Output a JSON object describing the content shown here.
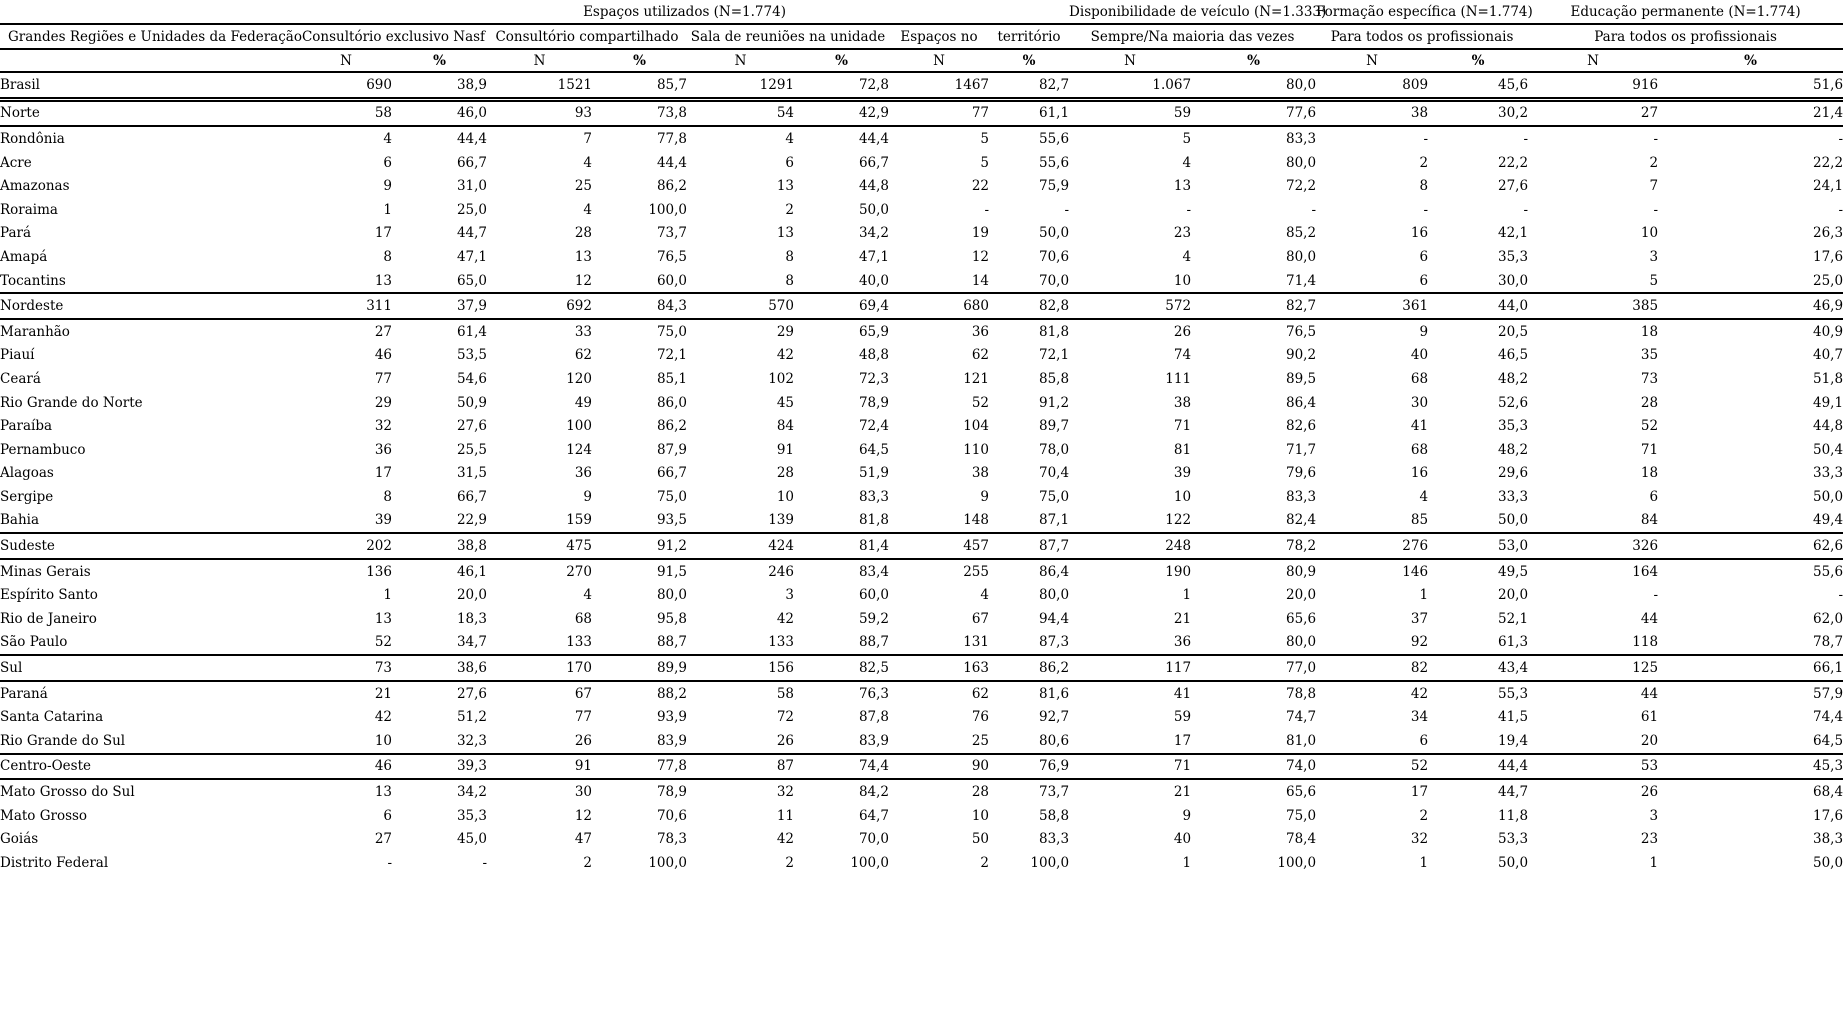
{
  "table": {
    "group_headers": [
      {
        "label": "",
        "span": 1
      },
      {
        "label": "Espaços utilizados (N=1.774)",
        "span": 8
      },
      {
        "label": "Disponibilidade de veículo (N=1.333)",
        "span": 2
      },
      {
        "label": "Formação específica (N=1.774)",
        "span": 2
      },
      {
        "label": "Educação permanente (N=1.774)",
        "span": 2
      }
    ],
    "column_headers": [
      {
        "label": "Grandes Regiões e Unidades da Federação",
        "span": 1
      },
      {
        "label": "Consultório exclusivo Nasf",
        "span": 2
      },
      {
        "label": "Consultório compartilhado",
        "span": 2
      },
      {
        "label": "Sala de reuniões na unidade",
        "span": 2
      },
      {
        "label": "Espaços no",
        "span": 1
      },
      {
        "label": "território",
        "span": 1
      },
      {
        "label": "Sempre/Na maioria das vezes",
        "span": 2
      },
      {
        "label": "Para todos os profissionais",
        "span": 2
      },
      {
        "label": "Para todos os profissionais",
        "span": 2
      }
    ],
    "subheaders": {
      "n_label": "N",
      "pct_label": "%",
      "pairs": 7
    },
    "rows": [
      {
        "name": "Brasil",
        "type": "brasil",
        "values": [
          "690",
          "38,9",
          "1521",
          "85,7",
          "1291",
          "72,8",
          "1467",
          "82,7",
          "1.067",
          "80,0",
          "809",
          "45,6",
          "916",
          "51,6"
        ]
      },
      {
        "name": "Norte",
        "type": "region",
        "values": [
          "58",
          "46,0",
          "93",
          "73,8",
          "54",
          "42,9",
          "77",
          "61,1",
          "59",
          "77,6",
          "38",
          "30,2",
          "27",
          "21,4"
        ]
      },
      {
        "name": "Rondônia",
        "type": "state",
        "values": [
          "4",
          "44,4",
          "7",
          "77,8",
          "4",
          "44,4",
          "5",
          "55,6",
          "5",
          "83,3",
          "-",
          "-",
          "-",
          "-"
        ]
      },
      {
        "name": "Acre",
        "type": "state",
        "values": [
          "6",
          "66,7",
          "4",
          "44,4",
          "6",
          "66,7",
          "5",
          "55,6",
          "4",
          "80,0",
          "2",
          "22,2",
          "2",
          "22,2"
        ]
      },
      {
        "name": "Amazonas",
        "type": "state",
        "values": [
          "9",
          "31,0",
          "25",
          "86,2",
          "13",
          "44,8",
          "22",
          "75,9",
          "13",
          "72,2",
          "8",
          "27,6",
          "7",
          "24,1"
        ]
      },
      {
        "name": "Roraima",
        "type": "state",
        "values": [
          "1",
          "25,0",
          "4",
          "100,0",
          "2",
          "50,0",
          "-",
          "-",
          "-",
          "-",
          "-",
          "-",
          "-",
          "-"
        ]
      },
      {
        "name": "Pará",
        "type": "state",
        "values": [
          "17",
          "44,7",
          "28",
          "73,7",
          "13",
          "34,2",
          "19",
          "50,0",
          "23",
          "85,2",
          "16",
          "42,1",
          "10",
          "26,3"
        ]
      },
      {
        "name": "Amapá",
        "type": "state",
        "values": [
          "8",
          "47,1",
          "13",
          "76,5",
          "8",
          "47,1",
          "12",
          "70,6",
          "4",
          "80,0",
          "6",
          "35,3",
          "3",
          "17,6"
        ]
      },
      {
        "name": "Tocantins",
        "type": "state",
        "values": [
          "13",
          "65,0",
          "12",
          "60,0",
          "8",
          "40,0",
          "14",
          "70,0",
          "10",
          "71,4",
          "6",
          "30,0",
          "5",
          "25,0"
        ]
      },
      {
        "name": "Nordeste",
        "type": "region",
        "values": [
          "311",
          "37,9",
          "692",
          "84,3",
          "570",
          "69,4",
          "680",
          "82,8",
          "572",
          "82,7",
          "361",
          "44,0",
          "385",
          "46,9"
        ]
      },
      {
        "name": "Maranhão",
        "type": "state",
        "values": [
          "27",
          "61,4",
          "33",
          "75,0",
          "29",
          "65,9",
          "36",
          "81,8",
          "26",
          "76,5",
          "9",
          "20,5",
          "18",
          "40,9"
        ]
      },
      {
        "name": "Piauí",
        "type": "state",
        "values": [
          "46",
          "53,5",
          "62",
          "72,1",
          "42",
          "48,8",
          "62",
          "72,1",
          "74",
          "90,2",
          "40",
          "46,5",
          "35",
          "40,7"
        ]
      },
      {
        "name": "Ceará",
        "type": "state",
        "values": [
          "77",
          "54,6",
          "120",
          "85,1",
          "102",
          "72,3",
          "121",
          "85,8",
          "111",
          "89,5",
          "68",
          "48,2",
          "73",
          "51,8"
        ]
      },
      {
        "name": "Rio Grande do Norte",
        "type": "state",
        "values": [
          "29",
          "50,9",
          "49",
          "86,0",
          "45",
          "78,9",
          "52",
          "91,2",
          "38",
          "86,4",
          "30",
          "52,6",
          "28",
          "49,1"
        ]
      },
      {
        "name": "Paraíba",
        "type": "state",
        "values": [
          "32",
          "27,6",
          "100",
          "86,2",
          "84",
          "72,4",
          "104",
          "89,7",
          "71",
          "82,6",
          "41",
          "35,3",
          "52",
          "44,8"
        ]
      },
      {
        "name": "Pernambuco",
        "type": "state",
        "values": [
          "36",
          "25,5",
          "124",
          "87,9",
          "91",
          "64,5",
          "110",
          "78,0",
          "81",
          "71,7",
          "68",
          "48,2",
          "71",
          "50,4"
        ]
      },
      {
        "name": "Alagoas",
        "type": "state",
        "values": [
          "17",
          "31,5",
          "36",
          "66,7",
          "28",
          "51,9",
          "38",
          "70,4",
          "39",
          "79,6",
          "16",
          "29,6",
          "18",
          "33,3"
        ]
      },
      {
        "name": "Sergipe",
        "type": "state",
        "values": [
          "8",
          "66,7",
          "9",
          "75,0",
          "10",
          "83,3",
          "9",
          "75,0",
          "10",
          "83,3",
          "4",
          "33,3",
          "6",
          "50,0"
        ]
      },
      {
        "name": "Bahia",
        "type": "state",
        "values": [
          "39",
          "22,9",
          "159",
          "93,5",
          "139",
          "81,8",
          "148",
          "87,1",
          "122",
          "82,4",
          "85",
          "50,0",
          "84",
          "49,4"
        ]
      },
      {
        "name": "Sudeste",
        "type": "region",
        "values": [
          "202",
          "38,8",
          "475",
          "91,2",
          "424",
          "81,4",
          "457",
          "87,7",
          "248",
          "78,2",
          "276",
          "53,0",
          "326",
          "62,6"
        ]
      },
      {
        "name": "Minas Gerais",
        "type": "state",
        "values": [
          "136",
          "46,1",
          "270",
          "91,5",
          "246",
          "83,4",
          "255",
          "86,4",
          "190",
          "80,9",
          "146",
          "49,5",
          "164",
          "55,6"
        ]
      },
      {
        "name": "Espírito Santo",
        "type": "state",
        "values": [
          "1",
          "20,0",
          "4",
          "80,0",
          "3",
          "60,0",
          "4",
          "80,0",
          "1",
          "20,0",
          "1",
          "20,0",
          "-",
          "-"
        ]
      },
      {
        "name": "Rio de Janeiro",
        "type": "state",
        "values": [
          "13",
          "18,3",
          "68",
          "95,8",
          "42",
          "59,2",
          "67",
          "94,4",
          "21",
          "65,6",
          "37",
          "52,1",
          "44",
          "62,0"
        ]
      },
      {
        "name": "São Paulo",
        "type": "state",
        "values": [
          "52",
          "34,7",
          "133",
          "88,7",
          "133",
          "88,7",
          "131",
          "87,3",
          "36",
          "80,0",
          "92",
          "61,3",
          "118",
          "78,7"
        ]
      },
      {
        "name": "Sul",
        "type": "region",
        "values": [
          "73",
          "38,6",
          "170",
          "89,9",
          "156",
          "82,5",
          "163",
          "86,2",
          "117",
          "77,0",
          "82",
          "43,4",
          "125",
          "66,1"
        ]
      },
      {
        "name": "Paraná",
        "type": "state",
        "values": [
          "21",
          "27,6",
          "67",
          "88,2",
          "58",
          "76,3",
          "62",
          "81,6",
          "41",
          "78,8",
          "42",
          "55,3",
          "44",
          "57,9"
        ]
      },
      {
        "name": "Santa Catarina",
        "type": "state",
        "values": [
          "42",
          "51,2",
          "77",
          "93,9",
          "72",
          "87,8",
          "76",
          "92,7",
          "59",
          "74,7",
          "34",
          "41,5",
          "61",
          "74,4"
        ]
      },
      {
        "name": "Rio Grande do Sul",
        "type": "state",
        "values": [
          "10",
          "32,3",
          "26",
          "83,9",
          "26",
          "83,9",
          "25",
          "80,6",
          "17",
          "81,0",
          "6",
          "19,4",
          "20",
          "64,5"
        ]
      },
      {
        "name": "Centro-Oeste",
        "type": "region",
        "values": [
          "46",
          "39,3",
          "91",
          "77,8",
          "87",
          "74,4",
          "90",
          "76,9",
          "71",
          "74,0",
          "52",
          "44,4",
          "53",
          "45,3"
        ]
      },
      {
        "name": "Mato Grosso do Sul",
        "type": "state",
        "values": [
          "13",
          "34,2",
          "30",
          "78,9",
          "32",
          "84,2",
          "28",
          "73,7",
          "21",
          "65,6",
          "17",
          "44,7",
          "26",
          "68,4"
        ]
      },
      {
        "name": "Mato Grosso",
        "type": "state",
        "values": [
          "6",
          "35,3",
          "12",
          "70,6",
          "11",
          "64,7",
          "10",
          "58,8",
          "9",
          "75,0",
          "2",
          "11,8",
          "3",
          "17,6"
        ]
      },
      {
        "name": "Goiás",
        "type": "state",
        "values": [
          "27",
          "45,0",
          "47",
          "78,3",
          "42",
          "70,0",
          "50",
          "83,3",
          "40",
          "78,4",
          "32",
          "53,3",
          "23",
          "38,3"
        ]
      },
      {
        "name": "Distrito Federal",
        "type": "state",
        "values": [
          "-",
          "-",
          "2",
          "100,0",
          "2",
          "100,0",
          "2",
          "100,0",
          "1",
          "100,0",
          "1",
          "50,0",
          "1",
          "50,0"
        ]
      }
    ]
  }
}
